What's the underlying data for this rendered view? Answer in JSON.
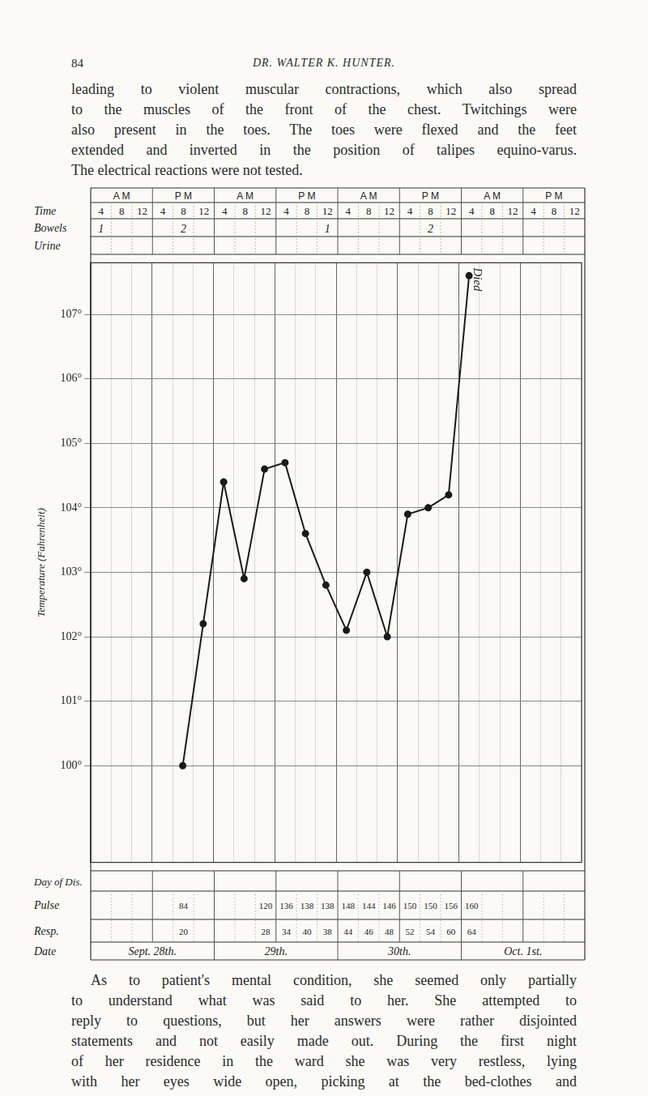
{
  "header": {
    "page_number": "84",
    "running_title": "DR. WALTER K. HUNTER."
  },
  "text_before": {
    "lines": [
      "leading to violent muscular contractions, which also spread",
      "to the muscles of the front of the chest. Twitchings were",
      "also present in the toes. The toes were flexed and the feet",
      "extended and inverted in the position of talipes equino-varus.",
      "The electrical reactions were not tested."
    ]
  },
  "chart_data": {
    "type": "line",
    "periods": [
      "A M",
      "P M",
      "A M",
      "P M",
      "A M",
      "P M",
      "A M",
      "P M"
    ],
    "categories": [
      "4",
      "8",
      "12",
      "4",
      "8",
      "12",
      "4",
      "8",
      "12",
      "4",
      "8",
      "12",
      "4",
      "8",
      "12",
      "4",
      "8",
      "12",
      "4",
      "8",
      "12",
      "4",
      "8",
      "12"
    ],
    "values": [
      null,
      null,
      null,
      null,
      100.0,
      102.2,
      104.4,
      102.9,
      104.6,
      104.7,
      103.6,
      102.8,
      102.1,
      103.0,
      102.0,
      103.9,
      104.0,
      104.2,
      107.6,
      null,
      null,
      null,
      null,
      null
    ],
    "color": "#1a1a1a",
    "marker": "circle",
    "grid": true,
    "y_label": "Temperature (Fahrenheit)",
    "ylim": [
      98.5,
      107.8
    ],
    "yticks": [
      {
        "value": 100,
        "label": "100°"
      },
      {
        "value": 101,
        "label": "101°"
      },
      {
        "value": 102,
        "label": "102°"
      },
      {
        "value": 103,
        "label": "103°"
      },
      {
        "value": 104,
        "label": "104°"
      },
      {
        "value": 105,
        "label": "105°"
      },
      {
        "value": 106,
        "label": "106°"
      },
      {
        "value": 107,
        "label": "107°"
      }
    ],
    "row_labels": {
      "time": "Time",
      "bowels": "Bowels",
      "urine": "Urine",
      "day_of_disease": "Day of Dis.",
      "pulse": "Pulse",
      "resp": "Resp.",
      "date": "Date"
    },
    "bowels": [
      1,
      null,
      null,
      null,
      2,
      null,
      null,
      null,
      null,
      null,
      null,
      1,
      null,
      null,
      null,
      null,
      2,
      null,
      null,
      null,
      null,
      null,
      null,
      null
    ],
    "pulse": [
      null,
      null,
      null,
      null,
      84,
      null,
      null,
      null,
      120,
      136,
      138,
      138,
      148,
      144,
      146,
      150,
      150,
      156,
      160,
      null,
      null,
      null,
      null,
      null
    ],
    "resp": [
      null,
      null,
      null,
      null,
      20,
      null,
      null,
      null,
      28,
      34,
      40,
      38,
      44,
      46,
      48,
      52,
      54,
      60,
      64,
      null,
      null,
      null,
      null,
      null
    ],
    "dates": [
      "Sept. 28th.",
      "29th.",
      "30th.",
      "Oct. 1st."
    ],
    "annotation": "Died"
  },
  "text_after": {
    "lines": [
      "As to patient's mental condition, she seemed only partially",
      "to understand what was said to her. She attempted to",
      "reply to questions, but her answers were rather disjointed",
      "statements and not easily made out. During the first night",
      "of her residence in the ward she was very restless, lying",
      "with her eyes wide open, picking at the bed-clothes and"
    ]
  }
}
